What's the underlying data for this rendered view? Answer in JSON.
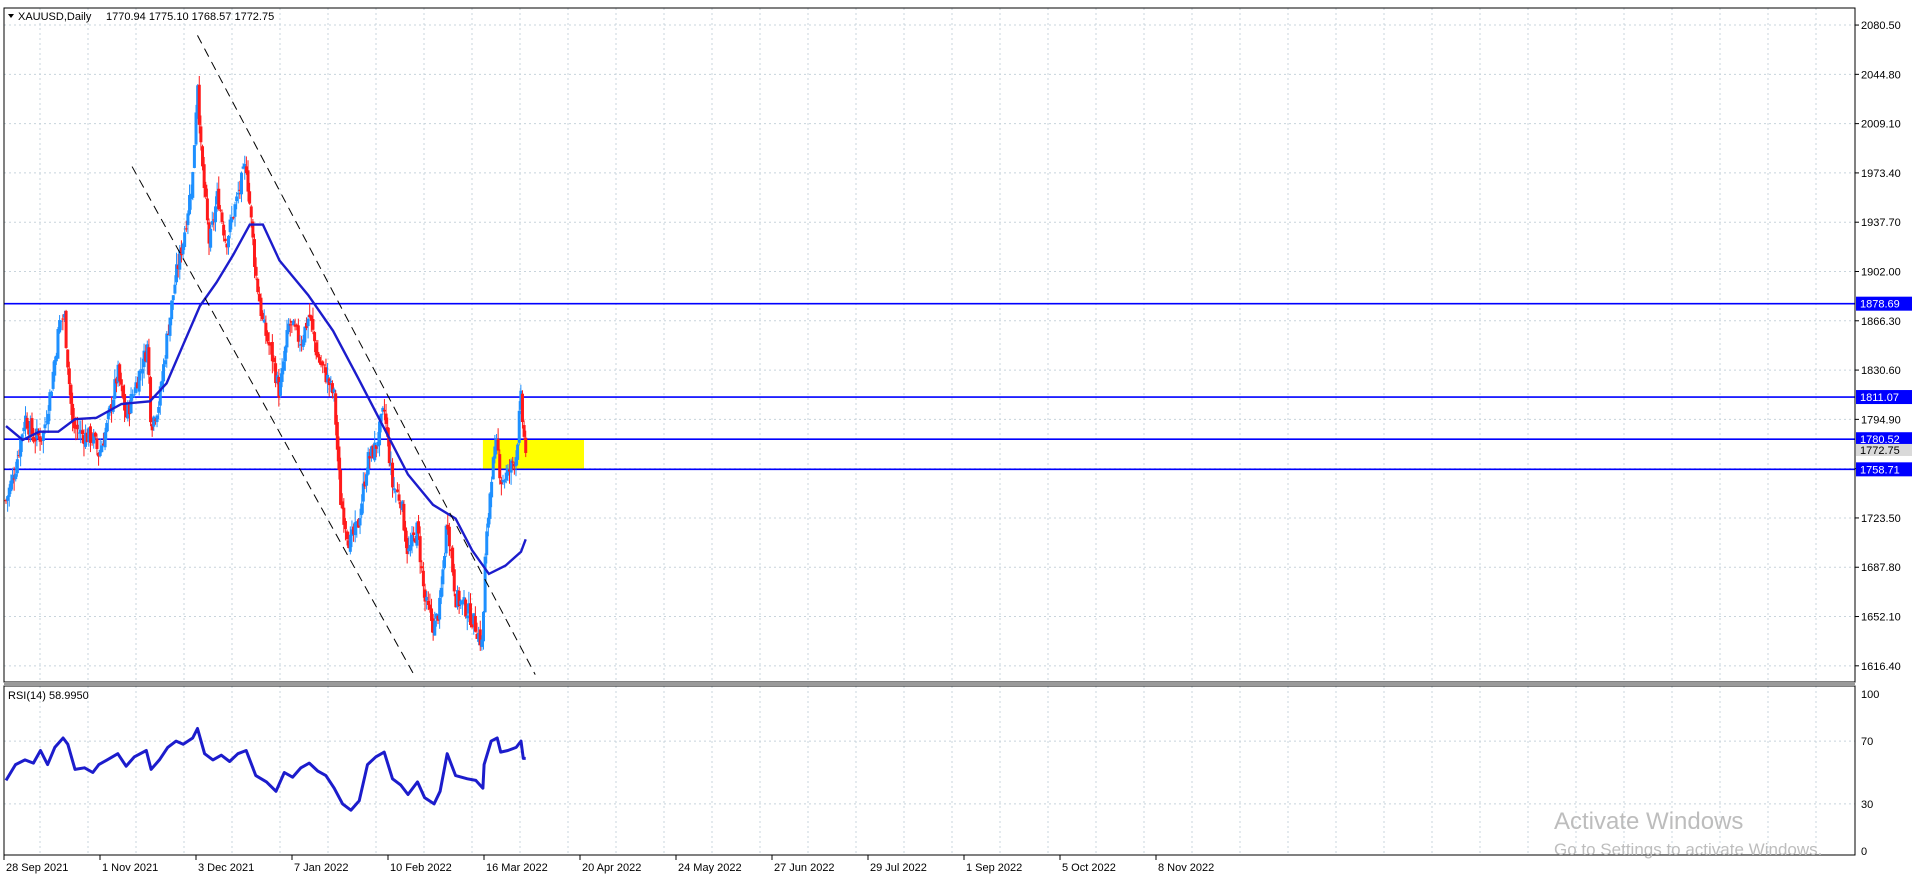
{
  "header": {
    "symbol_label": "XAUUSD,Daily",
    "ohlc_label": "1770.94 1775.10 1768.57 1772.75",
    "collapse_icon": "triangle-down-icon"
  },
  "rsi_header": {
    "label": "RSI(14) 58.9950"
  },
  "watermark": {
    "title": "Activate Windows",
    "subtitle": "Go to Settings to activate Windows."
  },
  "colors": {
    "background": "#ffffff",
    "grid": "#c8d4dc",
    "axis": "#000000",
    "bull_candle": "#1e90ff",
    "bear_candle": "#ff1a1a",
    "ma_line": "#1c1ccc",
    "level_line": "#0000ff",
    "level_label_bg": "#0000ff",
    "level_label_text": "#ffffff",
    "channel_line": "#000000",
    "zone_fill": "#ffff00",
    "rsi_line": "#1c1ccc",
    "price_label_bg": "#d9d9d9"
  },
  "chart_data": [
    {
      "type": "candlestick",
      "symbol": "XAUUSD",
      "timeframe": "Daily",
      "x_tick_labels": [
        "28 Sep 2021",
        "1 Nov 2021",
        "3 Dec 2021",
        "7 Jan 2022",
        "10 Feb 2022",
        "16 Mar 2022",
        "20 Apr 2022",
        "24 May 2022",
        "27 Jun 2022",
        "29 Jul 2022",
        "1 Sep 2022",
        "5 Oct 2022",
        "8 Nov 2022"
      ],
      "y_tick_labels": [
        "2080.50",
        "2044.80",
        "2009.10",
        "1973.40",
        "1937.70",
        "1902.00",
        "1866.30",
        "1830.60",
        "1794.90",
        "1759.20",
        "1723.50",
        "1687.80",
        "1652.10",
        "1616.40"
      ],
      "ylim": [
        1608.3,
        2088.5
      ],
      "grid": true,
      "last_ohlc": {
        "open": 1770.94,
        "high": 1775.1,
        "low": 1768.57,
        "close": 1772.75
      },
      "current_price_label": "1772.75",
      "close_path": [
        {
          "date": "2021-09-28",
          "close": 1736
        },
        {
          "date": "2021-10-06",
          "close": 1760
        },
        {
          "date": "2021-10-14",
          "close": 1797
        },
        {
          "date": "2021-10-21",
          "close": 1782
        },
        {
          "date": "2021-10-29",
          "close": 1783
        },
        {
          "date": "2021-11-05",
          "close": 1818
        },
        {
          "date": "2021-11-12",
          "close": 1865
        },
        {
          "date": "2021-11-16",
          "close": 1870
        },
        {
          "date": "2021-11-23",
          "close": 1790
        },
        {
          "date": "2021-12-03",
          "close": 1783
        },
        {
          "date": "2021-12-10",
          "close": 1782
        },
        {
          "date": "2021-12-15",
          "close": 1770
        },
        {
          "date": "2021-12-22",
          "close": 1790
        },
        {
          "date": "2021-12-31",
          "close": 1829
        },
        {
          "date": "2022-01-07",
          "close": 1797
        },
        {
          "date": "2022-01-14",
          "close": 1817
        },
        {
          "date": "2022-01-25",
          "close": 1848
        },
        {
          "date": "2022-01-28",
          "close": 1791
        },
        {
          "date": "2022-02-04",
          "close": 1808
        },
        {
          "date": "2022-02-11",
          "close": 1859
        },
        {
          "date": "2022-02-18",
          "close": 1899
        },
        {
          "date": "2022-02-24",
          "close": 1925
        },
        {
          "date": "2022-03-04",
          "close": 1971
        },
        {
          "date": "2022-03-08",
          "close": 2043
        },
        {
          "date": "2022-03-11",
          "close": 1987
        },
        {
          "date": "2022-03-18",
          "close": 1921
        },
        {
          "date": "2022-03-25",
          "close": 1958
        },
        {
          "date": "2022-04-01",
          "close": 1923
        },
        {
          "date": "2022-04-08",
          "close": 1947
        },
        {
          "date": "2022-04-18",
          "close": 1980
        },
        {
          "date": "2022-04-26",
          "close": 1900
        },
        {
          "date": "2022-05-02",
          "close": 1864
        },
        {
          "date": "2022-05-10",
          "close": 1840
        },
        {
          "date": "2022-05-16",
          "close": 1813
        },
        {
          "date": "2022-05-24",
          "close": 1865
        },
        {
          "date": "2022-06-03",
          "close": 1851
        },
        {
          "date": "2022-06-10",
          "close": 1871
        },
        {
          "date": "2022-06-17",
          "close": 1840
        },
        {
          "date": "2022-06-24",
          "close": 1827
        },
        {
          "date": "2022-07-01",
          "close": 1811
        },
        {
          "date": "2022-07-06",
          "close": 1738
        },
        {
          "date": "2022-07-14",
          "close": 1705
        },
        {
          "date": "2022-07-21",
          "close": 1718
        },
        {
          "date": "2022-07-29",
          "close": 1765
        },
        {
          "date": "2022-08-05",
          "close": 1775
        },
        {
          "date": "2022-08-12",
          "close": 1802
        },
        {
          "date": "2022-08-19",
          "close": 1747
        },
        {
          "date": "2022-08-26",
          "close": 1737
        },
        {
          "date": "2022-09-01",
          "close": 1697
        },
        {
          "date": "2022-09-09",
          "close": 1716
        },
        {
          "date": "2022-09-15",
          "close": 1664
        },
        {
          "date": "2022-09-23",
          "close": 1644
        },
        {
          "date": "2022-09-28",
          "close": 1660
        },
        {
          "date": "2022-10-04",
          "close": 1725
        },
        {
          "date": "2022-10-11",
          "close": 1666
        },
        {
          "date": "2022-10-21",
          "close": 1657
        },
        {
          "date": "2022-10-28",
          "close": 1645
        },
        {
          "date": "2022-11-03",
          "close": 1630
        },
        {
          "date": "2022-11-04",
          "close": 1682
        },
        {
          "date": "2022-11-10",
          "close": 1755
        },
        {
          "date": "2022-11-15",
          "close": 1777
        },
        {
          "date": "2022-11-18",
          "close": 1751
        },
        {
          "date": "2022-11-24",
          "close": 1755
        },
        {
          "date": "2022-12-01",
          "close": 1770
        },
        {
          "date": "2022-12-05",
          "close": 1810
        },
        {
          "date": "2022-12-07",
          "close": 1785
        },
        {
          "date": "2022-12-09",
          "close": 1772.75
        }
      ],
      "moving_average": [
        {
          "date": "2021-09-28",
          "value": 1790
        },
        {
          "date": "2021-10-12",
          "value": 1780
        },
        {
          "date": "2021-10-26",
          "value": 1786
        },
        {
          "date": "2021-11-11",
          "value": 1786
        },
        {
          "date": "2021-11-25",
          "value": 1795
        },
        {
          "date": "2021-12-13",
          "value": 1796
        },
        {
          "date": "2022-01-03",
          "value": 1806
        },
        {
          "date": "2022-01-27",
          "value": 1808
        },
        {
          "date": "2022-02-10",
          "value": 1821
        },
        {
          "date": "2022-02-24",
          "value": 1849
        },
        {
          "date": "2022-03-10",
          "value": 1877
        },
        {
          "date": "2022-03-24",
          "value": 1894
        },
        {
          "date": "2022-04-07",
          "value": 1914
        },
        {
          "date": "2022-04-21",
          "value": 1936
        },
        {
          "date": "2022-05-02",
          "value": 1936
        },
        {
          "date": "2022-05-16",
          "value": 1910
        },
        {
          "date": "2022-06-09",
          "value": 1885
        },
        {
          "date": "2022-06-30",
          "value": 1859
        },
        {
          "date": "2022-07-21",
          "value": 1825
        },
        {
          "date": "2022-08-11",
          "value": 1790
        },
        {
          "date": "2022-09-01",
          "value": 1755
        },
        {
          "date": "2022-09-22",
          "value": 1733
        },
        {
          "date": "2022-10-11",
          "value": 1723
        },
        {
          "date": "2022-10-25",
          "value": 1700
        },
        {
          "date": "2022-11-08",
          "value": 1683
        },
        {
          "date": "2022-11-22",
          "value": 1689
        },
        {
          "date": "2022-12-05",
          "value": 1699
        },
        {
          "date": "2022-12-09",
          "value": 1708
        }
      ],
      "horizontal_levels": [
        {
          "value": 1878.69,
          "label": "1878.69"
        },
        {
          "value": 1811.07,
          "label": "1811.07"
        },
        {
          "value": 1780.52,
          "label": "1780.52"
        },
        {
          "value": 1758.71,
          "label": "1758.71"
        }
      ],
      "channel_lines": [
        {
          "start": {
            "date": "2022-03-08",
            "price": 2073
          },
          "end": {
            "date": "2022-12-17",
            "price": 1610
          }
        },
        {
          "start": {
            "date": "2022-01-12",
            "price": 1978
          },
          "end": {
            "date": "2022-09-06",
            "price": 1610
          }
        }
      ],
      "highlight_zone": {
        "start": "2022-11-03",
        "end": "2023-01-27",
        "high": 1780.5,
        "low": 1759
      }
    },
    {
      "type": "line",
      "indicator": "RSI(14)",
      "last_value": 58.995,
      "y_tick_labels": [
        "100",
        "70",
        "30",
        "0"
      ],
      "ylim": [
        0,
        100
      ],
      "reference_levels": [
        70,
        30
      ],
      "series": [
        {
          "values": [
            {
              "date": "2021-09-28",
              "value": 45
            },
            {
              "date": "2021-10-06",
              "value": 55
            },
            {
              "date": "2021-10-14",
              "value": 58
            },
            {
              "date": "2021-10-21",
              "value": 56
            },
            {
              "date": "2021-10-27",
              "value": 64
            },
            {
              "date": "2021-11-02",
              "value": 55
            },
            {
              "date": "2021-11-08",
              "value": 66
            },
            {
              "date": "2021-11-15",
              "value": 72
            },
            {
              "date": "2021-11-19",
              "value": 68
            },
            {
              "date": "2021-11-25",
              "value": 52
            },
            {
              "date": "2021-12-03",
              "value": 53
            },
            {
              "date": "2021-12-10",
              "value": 50
            },
            {
              "date": "2021-12-15",
              "value": 55
            },
            {
              "date": "2021-12-22",
              "value": 58
            },
            {
              "date": "2021-12-31",
              "value": 62
            },
            {
              "date": "2022-01-07",
              "value": 54
            },
            {
              "date": "2022-01-14",
              "value": 60
            },
            {
              "date": "2022-01-24",
              "value": 64
            },
            {
              "date": "2022-01-28",
              "value": 52
            },
            {
              "date": "2022-02-04",
              "value": 58
            },
            {
              "date": "2022-02-11",
              "value": 66
            },
            {
              "date": "2022-02-18",
              "value": 70
            },
            {
              "date": "2022-02-24",
              "value": 68
            },
            {
              "date": "2022-03-04",
              "value": 72
            },
            {
              "date": "2022-03-08",
              "value": 78
            },
            {
              "date": "2022-03-14",
              "value": 62
            },
            {
              "date": "2022-03-21",
              "value": 58
            },
            {
              "date": "2022-03-28",
              "value": 61
            },
            {
              "date": "2022-04-04",
              "value": 57
            },
            {
              "date": "2022-04-11",
              "value": 62
            },
            {
              "date": "2022-04-18",
              "value": 64
            },
            {
              "date": "2022-04-26",
              "value": 48
            },
            {
              "date": "2022-05-05",
              "value": 44
            },
            {
              "date": "2022-05-13",
              "value": 38
            },
            {
              "date": "2022-05-20",
              "value": 50
            },
            {
              "date": "2022-05-27",
              "value": 47
            },
            {
              "date": "2022-06-03",
              "value": 53
            },
            {
              "date": "2022-06-10",
              "value": 56
            },
            {
              "date": "2022-06-17",
              "value": 51
            },
            {
              "date": "2022-06-24",
              "value": 48
            },
            {
              "date": "2022-07-01",
              "value": 40
            },
            {
              "date": "2022-07-08",
              "value": 30
            },
            {
              "date": "2022-07-15",
              "value": 26
            },
            {
              "date": "2022-07-22",
              "value": 32
            },
            {
              "date": "2022-07-29",
              "value": 55
            },
            {
              "date": "2022-08-05",
              "value": 60
            },
            {
              "date": "2022-08-12",
              "value": 63
            },
            {
              "date": "2022-08-19",
              "value": 46
            },
            {
              "date": "2022-08-26",
              "value": 42
            },
            {
              "date": "2022-09-01",
              "value": 36
            },
            {
              "date": "2022-09-09",
              "value": 44
            },
            {
              "date": "2022-09-15",
              "value": 34
            },
            {
              "date": "2022-09-23",
              "value": 30
            },
            {
              "date": "2022-09-28",
              "value": 38
            },
            {
              "date": "2022-10-04",
              "value": 62
            },
            {
              "date": "2022-10-11",
              "value": 48
            },
            {
              "date": "2022-10-21",
              "value": 46
            },
            {
              "date": "2022-10-28",
              "value": 45
            },
            {
              "date": "2022-11-03",
              "value": 40
            },
            {
              "date": "2022-11-04",
              "value": 55
            },
            {
              "date": "2022-11-10",
              "value": 70
            },
            {
              "date": "2022-11-15",
              "value": 72
            },
            {
              "date": "2022-11-18",
              "value": 63
            },
            {
              "date": "2022-11-24",
              "value": 64
            },
            {
              "date": "2022-12-01",
              "value": 66
            },
            {
              "date": "2022-12-05",
              "value": 70
            },
            {
              "date": "2022-12-07",
              "value": 59
            },
            {
              "date": "2022-12-09",
              "value": 59
            }
          ]
        }
      ]
    }
  ]
}
